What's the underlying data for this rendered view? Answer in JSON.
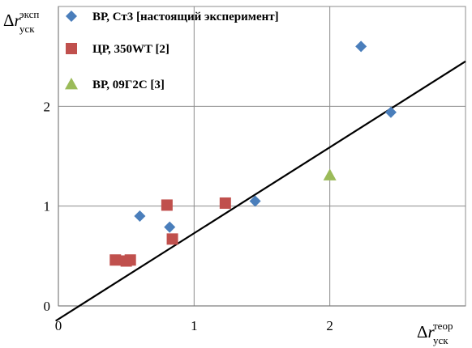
{
  "chart_data": {
    "type": "scatter",
    "title": "",
    "xlabel": {
      "prefix": "Δ",
      "symbol": "r",
      "superscript": "теор",
      "subscript": "уск"
    },
    "ylabel": {
      "prefix": "Δ",
      "symbol": "r",
      "superscript": "эксп",
      "subscript": "уск"
    },
    "xlim": [
      0,
      3
    ],
    "ylim": [
      0,
      3
    ],
    "xticks": [
      "0",
      "1",
      "2"
    ],
    "yticks": [
      "0",
      "1",
      "2"
    ],
    "grid": true,
    "legend_position": "top-left",
    "series": [
      {
        "name": "ВР, Ст3 [настоящий эксперимент]",
        "marker": "diamond",
        "color": "#4A7EBB",
        "points": [
          {
            "x": 0.6,
            "y": 0.9
          },
          {
            "x": 0.82,
            "y": 0.79
          },
          {
            "x": 1.45,
            "y": 1.05
          },
          {
            "x": 2.23,
            "y": 2.6
          },
          {
            "x": 2.45,
            "y": 1.94
          }
        ]
      },
      {
        "name": "ЦР, 350WT [2]",
        "marker": "square",
        "color": "#C0504D",
        "points": [
          {
            "x": 0.42,
            "y": 0.46
          },
          {
            "x": 0.5,
            "y": 0.45
          },
          {
            "x": 0.53,
            "y": 0.46
          },
          {
            "x": 0.8,
            "y": 1.01
          },
          {
            "x": 0.84,
            "y": 0.67
          },
          {
            "x": 1.23,
            "y": 1.03
          }
        ]
      },
      {
        "name": "ВР, 09Г2С [3]",
        "marker": "triangle",
        "color": "#9BBB59",
        "points": [
          {
            "x": 2.0,
            "y": 1.31
          }
        ]
      }
    ],
    "reference_line": {
      "start": {
        "x": -0.02,
        "y": -0.15
      },
      "end": {
        "x": 3.0,
        "y": 2.45
      },
      "color": "#000000"
    }
  }
}
